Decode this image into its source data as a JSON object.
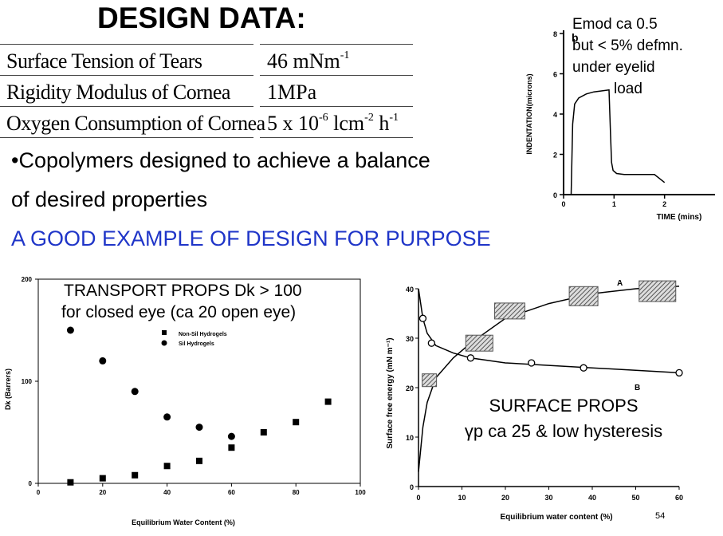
{
  "title": "DESIGN DATA:",
  "design_table": [
    {
      "label": "Surface Tension of Tears",
      "value": "46 mNm",
      "sup1": "-1",
      "mid": "",
      "sup2": "",
      "end": ""
    },
    {
      "label": "Rigidity Modulus of Cornea",
      "value": "1MPa",
      "sup1": "",
      "mid": "",
      "sup2": "",
      "end": ""
    },
    {
      "label": "Oxygen Consumption of Cornea",
      "value": "5 x 10",
      "sup1": "-6",
      "mid": " lcm",
      "sup2": "-2",
      "end": " h",
      "sup3": "-1"
    }
  ],
  "bullet_line1": "•Copolymers designed to achieve a balance",
  "bullet_line2": "of  desired properties",
  "example_text": "A GOOD EXAMPLE OF DESIGN FOR PURPOSE",
  "slide_number": "54",
  "colors": {
    "example_blue": "#1f35c8",
    "hatched_box": "#555555"
  },
  "chart_data": [
    {
      "type": "line",
      "panel_letter": "b",
      "annotation": [
        "Emod ca 0.5",
        "but < 5% defmn.",
        "under eyelid",
        "load"
      ],
      "xlabel": "TIME (mins)",
      "ylabel": "INDENTATION(microns)",
      "xlim": [
        0,
        3
      ],
      "ylim": [
        0,
        8
      ],
      "x_ticks": [
        "0",
        "1",
        "2"
      ],
      "y_ticks": [
        "0",
        "2",
        "4",
        "6",
        "8"
      ],
      "series": [
        {
          "x": [
            0.15,
            0.18,
            0.22,
            0.3,
            0.45,
            0.6,
            0.75,
            0.9,
            0.93,
            0.95,
            0.98,
            1.05,
            1.2,
            1.5,
            1.8,
            2.0
          ],
          "y": [
            0,
            3.5,
            4.5,
            4.8,
            5.0,
            5.1,
            5.15,
            5.2,
            3.0,
            1.6,
            1.2,
            1.05,
            1.0,
            1.0,
            1.0,
            0.6
          ]
        }
      ]
    },
    {
      "type": "scatter",
      "annotation": [
        "TRANSPORT PROPS Dk > 100",
        "for closed eye (ca 20 open eye)"
      ],
      "xlabel": "Equilibrium Water Content (%)",
      "ylabel": "Dk (Barrers)",
      "xlim": [
        0,
        100
      ],
      "ylim": [
        0,
        200
      ],
      "x_ticks": [
        "0",
        "20",
        "40",
        "60",
        "80",
        "100"
      ],
      "y_ticks": [
        "0",
        "100",
        "200"
      ],
      "legend_position": "top-right",
      "series": [
        {
          "name": "Non-Sil Hydrogels",
          "marker": "square",
          "x": [
            10,
            20,
            30,
            40,
            50,
            60,
            70,
            80,
            90
          ],
          "y": [
            1,
            5,
            8,
            17,
            22,
            35,
            50,
            60,
            80
          ]
        },
        {
          "name": "Sil Hydrogels",
          "marker": "circle",
          "x": [
            10,
            20,
            30,
            40,
            50,
            60
          ],
          "y": [
            150,
            120,
            90,
            65,
            55,
            46
          ]
        }
      ]
    },
    {
      "type": "line",
      "annotation": [
        "SURFACE PROPS",
        "γp ca 25 & low hysteresis"
      ],
      "xlabel": "Equilibrium water content (%)",
      "ylabel": "Surface free energy (mN m⁻¹)",
      "xlim": [
        0,
        60
      ],
      "ylim": [
        0,
        40
      ],
      "x_ticks": [
        "0",
        "10",
        "20",
        "30",
        "40",
        "50",
        "60"
      ],
      "y_ticks": [
        "0",
        "10",
        "20",
        "30",
        "40"
      ],
      "series": [
        {
          "name": "A",
          "marker": "hatched-box",
          "x": [
            0,
            1,
            2,
            4,
            8,
            12,
            20,
            30,
            40,
            50,
            60
          ],
          "y": [
            3,
            12,
            17,
            22,
            26,
            29,
            34,
            37,
            39,
            40,
            40.5
          ],
          "points_x": [
            2.5,
            14,
            21,
            38,
            55
          ],
          "points_y": [
            21.5,
            29,
            35.5,
            38.5,
            39.5
          ]
        },
        {
          "name": "B",
          "marker": "open-circle",
          "x": [
            0,
            1,
            2,
            4,
            8,
            12,
            20,
            30,
            40,
            50,
            60
          ],
          "y": [
            40,
            34,
            31,
            28.5,
            27,
            26,
            25,
            24.5,
            24,
            23.5,
            23
          ],
          "points_x": [
            1,
            3,
            12,
            26,
            38,
            60
          ],
          "points_y": [
            34,
            29,
            26,
            25,
            24,
            23
          ]
        }
      ]
    }
  ]
}
